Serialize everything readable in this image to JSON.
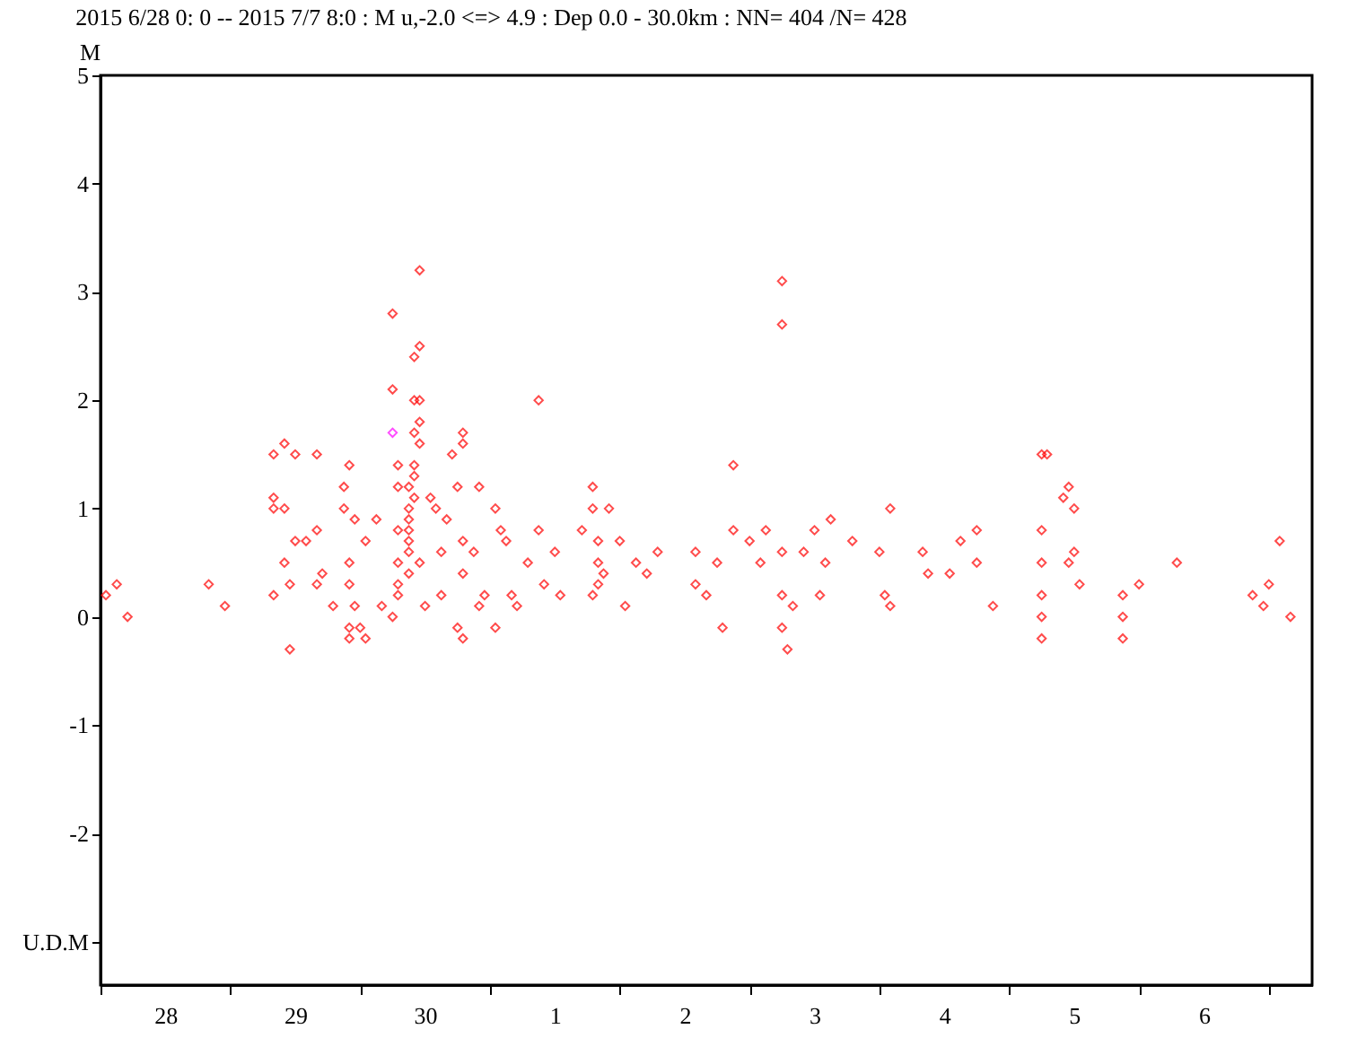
{
  "chart_data": {
    "type": "scatter",
    "title": "2015 6/28 0: 0 -- 2015 7/7 8:0  : M u,-2.0 <=> 4.9   :  Dep 0.0 - 30.0km :  NN= 404 /N= 428",
    "ylabel": "M",
    "marker": "diamond",
    "grid": false,
    "legend": false,
    "xlim": [
      "2015-06-28T00:00",
      "2015-07-07T08:00"
    ],
    "xticks": [
      {
        "value": "2015-06-28T00:00",
        "label": null
      },
      {
        "value": "2015-06-28T12:00",
        "label": "28"
      },
      {
        "value": "2015-06-29T00:00",
        "label": null
      },
      {
        "value": "2015-06-29T12:00",
        "label": "29"
      },
      {
        "value": "2015-06-30T00:00",
        "label": null
      },
      {
        "value": "2015-06-30T12:00",
        "label": "30"
      },
      {
        "value": "2015-07-01T00:00",
        "label": null
      },
      {
        "value": "2015-07-01T12:00",
        "label": "1"
      },
      {
        "value": "2015-07-02T00:00",
        "label": null
      },
      {
        "value": "2015-07-02T12:00",
        "label": "2"
      },
      {
        "value": "2015-07-03T00:00",
        "label": null
      },
      {
        "value": "2015-07-03T12:00",
        "label": "3"
      },
      {
        "value": "2015-07-04T00:00",
        "label": null
      },
      {
        "value": "2015-07-04T12:00",
        "label": "4"
      },
      {
        "value": "2015-07-05T00:00",
        "label": null
      },
      {
        "value": "2015-07-05T12:00",
        "label": "5"
      },
      {
        "value": "2015-07-06T00:00",
        "label": null
      },
      {
        "value": "2015-07-06T12:00",
        "label": "6"
      },
      {
        "value": "2015-07-07T00:00",
        "label": null
      }
    ],
    "ylim": [
      -3.4,
      5
    ],
    "yticks": [
      5,
      4,
      3,
      2,
      1,
      0,
      -1,
      -2,
      {
        "value": -3,
        "label": "U.D.M"
      }
    ],
    "series": [
      {
        "color": "#ff0000",
        "x": [
          "2015-06-28T01:00",
          "2015-06-28T03:00",
          "2015-06-28T05:00",
          "2015-06-28T20:00",
          "2015-06-28T23:00",
          "2015-06-29T08:00",
          "2015-06-29T08:00",
          "2015-06-29T08:00",
          "2015-06-29T08:00",
          "2015-06-29T10:00",
          "2015-06-29T10:00",
          "2015-06-29T10:00",
          "2015-06-29T11:00",
          "2015-06-29T11:00",
          "2015-06-29T12:00",
          "2015-06-29T12:00",
          "2015-06-29T14:00",
          "2015-06-29T16:00",
          "2015-06-29T16:00",
          "2015-06-29T16:00",
          "2015-06-29T17:00",
          "2015-06-29T19:00",
          "2015-06-29T21:00",
          "2015-06-29T21:00",
          "2015-06-29T22:00",
          "2015-06-29T22:00",
          "2015-06-29T22:00",
          "2015-06-29T22:00",
          "2015-06-29T22:00",
          "2015-06-29T23:00",
          "2015-06-29T23:00",
          "2015-06-30T00:00",
          "2015-06-30T01:00",
          "2015-06-30T01:00",
          "2015-06-30T03:00",
          "2015-06-30T04:00",
          "2015-06-30T06:00",
          "2015-06-30T06:00",
          "2015-06-30T06:00",
          "2015-06-30T07:00",
          "2015-06-30T07:00",
          "2015-06-30T07:00",
          "2015-06-30T07:00",
          "2015-06-30T07:00",
          "2015-06-30T07:00",
          "2015-06-30T10:00",
          "2015-06-30T11:00",
          "2015-06-30T11:00",
          "2015-06-30T10:00",
          "2015-06-30T11:00",
          "2015-06-30T11:00",
          "2015-06-30T10:00",
          "2015-06-30T11:00",
          "2015-06-30T10:00",
          "2015-06-30T10:00",
          "2015-06-30T09:00",
          "2015-06-30T10:00",
          "2015-06-30T09:00",
          "2015-06-30T09:00",
          "2015-06-30T09:00",
          "2015-06-30T09:00",
          "2015-06-30T09:00",
          "2015-06-30T09:00",
          "2015-06-30T11:00",
          "2015-06-30T12:00",
          "2015-06-30T13:00",
          "2015-06-30T14:00",
          "2015-06-30T15:00",
          "2015-06-30T15:00",
          "2015-06-30T16:00",
          "2015-06-30T18:00",
          "2015-06-30T19:00",
          "2015-06-30T19:00",
          "2015-06-30T17:00",
          "2015-06-30T18:00",
          "2015-06-30T19:00",
          "2015-06-30T19:00",
          "2015-06-30T19:00",
          "2015-06-30T22:00",
          "2015-06-30T21:00",
          "2015-06-30T22:00",
          "2015-06-30T23:00",
          "2015-07-01T01:00",
          "2015-07-01T02:00",
          "2015-07-01T01:00",
          "2015-07-01T03:00",
          "2015-07-01T04:00",
          "2015-07-01T05:00",
          "2015-07-01T07:00",
          "2015-07-01T09:00",
          "2015-07-01T09:00",
          "2015-07-01T10:00",
          "2015-07-01T12:00",
          "2015-07-01T13:00",
          "2015-07-01T17:00",
          "2015-07-01T19:00",
          "2015-07-01T19:00",
          "2015-07-01T19:00",
          "2015-07-01T20:00",
          "2015-07-01T20:00",
          "2015-07-01T21:00",
          "2015-07-01T20:00",
          "2015-07-01T22:00",
          "2015-07-02T00:00",
          "2015-07-02T03:00",
          "2015-07-02T01:00",
          "2015-07-02T07:00",
          "2015-07-02T05:00",
          "2015-07-02T14:00",
          "2015-07-02T14:00",
          "2015-07-02T16:00",
          "2015-07-02T19:00",
          "2015-07-02T18:00",
          "2015-07-02T21:00",
          "2015-07-02T21:00",
          "2015-07-03T00:00",
          "2015-07-03T03:00",
          "2015-07-03T02:00",
          "2015-07-03T06:00",
          "2015-07-03T06:00",
          "2015-07-03T06:00",
          "2015-07-03T06:00",
          "2015-07-03T06:00",
          "2015-07-03T07:00",
          "2015-07-03T08:00",
          "2015-07-03T10:00",
          "2015-07-03T12:00",
          "2015-07-03T13:00",
          "2015-07-03T14:00",
          "2015-07-03T15:00",
          "2015-07-03T19:00",
          "2015-07-04T00:00",
          "2015-07-04T01:00",
          "2015-07-04T02:00",
          "2015-07-04T02:00",
          "2015-07-04T08:00",
          "2015-07-04T09:00",
          "2015-07-04T13:00",
          "2015-07-04T15:00",
          "2015-07-04T18:00",
          "2015-07-04T18:00",
          "2015-07-04T21:00",
          "2015-07-05T06:00",
          "2015-07-05T07:00",
          "2015-07-05T06:00",
          "2015-07-05T06:00",
          "2015-07-05T06:00",
          "2015-07-05T06:00",
          "2015-07-05T06:00",
          "2015-07-05T11:00",
          "2015-07-05T10:00",
          "2015-07-05T12:00",
          "2015-07-05T12:00",
          "2015-07-05T11:00",
          "2015-07-05T13:00",
          "2015-07-05T21:00",
          "2015-07-05T21:00",
          "2015-07-05T21:00",
          "2015-07-06T00:00",
          "2015-07-06T07:00",
          "2015-07-06T21:00",
          "2015-07-06T23:00",
          "2015-07-07T00:00",
          "2015-07-07T02:00",
          "2015-07-07T04:00"
        ],
        "values": [
          0.2,
          0.3,
          0.0,
          0.3,
          0.1,
          0.2,
          1.0,
          1.1,
          1.5,
          1.6,
          0.5,
          1.0,
          -0.3,
          0.3,
          0.7,
          1.5,
          0.7,
          1.5,
          0.8,
          0.3,
          0.4,
          0.1,
          1.0,
          1.2,
          0.3,
          1.4,
          0.5,
          -0.1,
          -0.2,
          0.9,
          0.1,
          -0.1,
          -0.2,
          0.7,
          0.9,
          0.1,
          0.0,
          2.8,
          2.1,
          1.4,
          1.2,
          0.8,
          0.5,
          0.3,
          0.2,
          2.4,
          3.2,
          2.5,
          2.0,
          2.0,
          1.8,
          1.7,
          1.6,
          1.4,
          1.3,
          1.2,
          1.1,
          1.0,
          0.9,
          0.8,
          0.7,
          0.6,
          0.4,
          0.5,
          0.1,
          1.1,
          1.0,
          0.6,
          0.2,
          0.9,
          -0.1,
          1.7,
          1.6,
          1.5,
          1.2,
          0.7,
          -0.2,
          0.4,
          1.2,
          0.6,
          0.1,
          0.2,
          1.0,
          0.8,
          -0.1,
          0.7,
          0.2,
          0.1,
          0.5,
          2.0,
          0.8,
          0.3,
          0.6,
          0.2,
          0.8,
          1.2,
          1.0,
          0.2,
          0.7,
          0.5,
          0.4,
          0.3,
          1.0,
          0.7,
          0.5,
          0.1,
          0.6,
          0.4,
          0.6,
          0.3,
          0.2,
          -0.1,
          0.5,
          1.4,
          0.8,
          0.7,
          0.8,
          0.5,
          3.1,
          2.7,
          0.6,
          0.2,
          -0.1,
          -0.3,
          0.1,
          0.6,
          0.8,
          0.2,
          0.5,
          0.9,
          0.7,
          0.6,
          0.2,
          0.1,
          1.0,
          0.6,
          0.4,
          0.4,
          0.7,
          0.5,
          0.8,
          0.1,
          1.5,
          1.5,
          0.8,
          0.5,
          0.2,
          0.0,
          -0.2,
          1.2,
          1.1,
          1.0,
          0.6,
          0.5,
          0.3,
          0.2,
          0.0,
          -0.2,
          0.3,
          0.5,
          0.2,
          0.1,
          0.3,
          0.7,
          0.0
        ]
      },
      {
        "color": "#ff00ff",
        "x": [
          "2015-06-30T06:00"
        ],
        "values": [
          1.7
        ]
      }
    ]
  }
}
